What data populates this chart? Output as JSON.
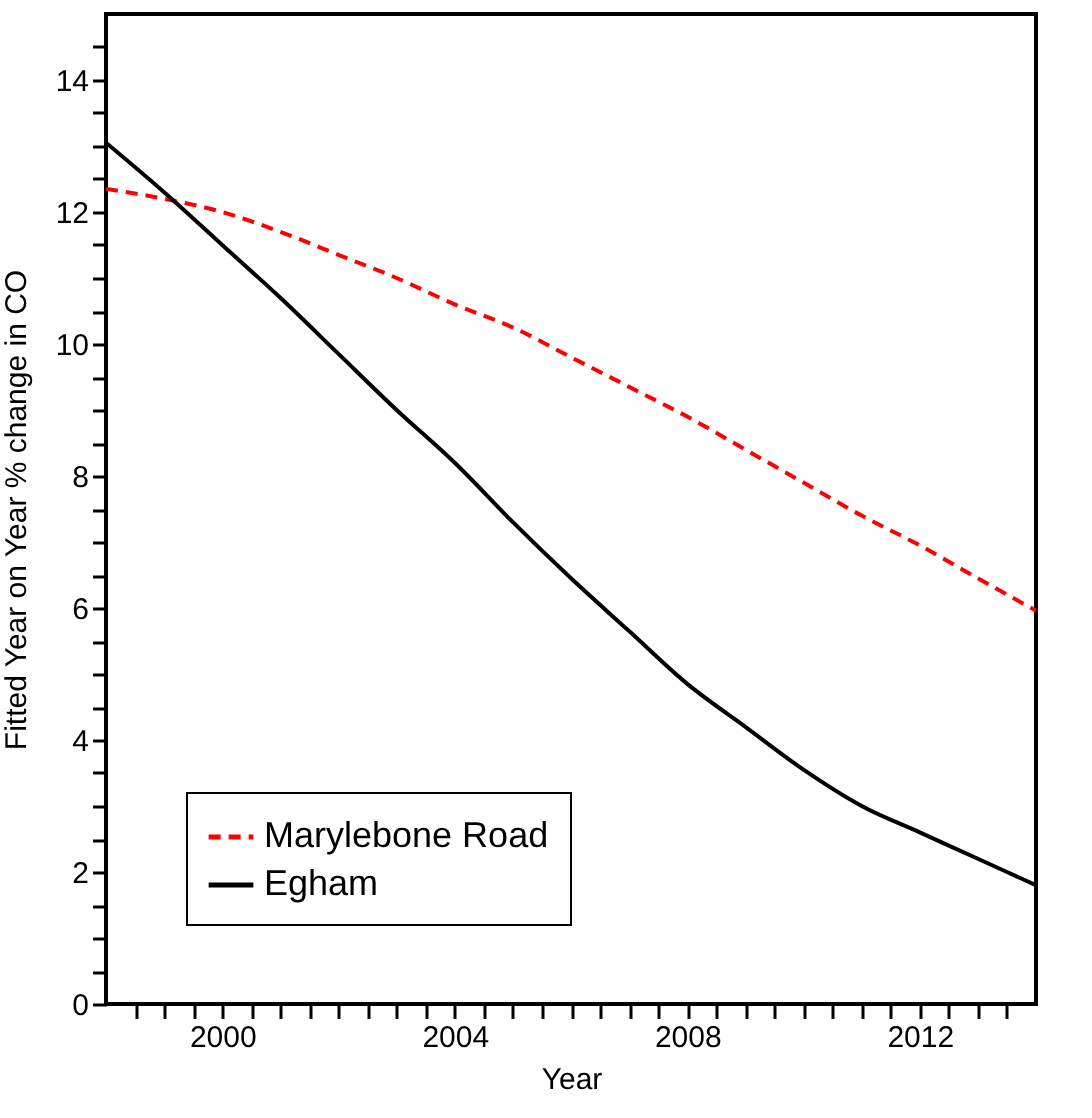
{
  "chart_data": {
    "type": "line",
    "xlabel": "Year",
    "ylabel": "Fitted Year on Year % change in CO",
    "x": [
      1998,
      1999,
      2000,
      2001,
      2002,
      2003,
      2004,
      2005,
      2006,
      2007,
      2008,
      2009,
      2010,
      2011,
      2012,
      2013,
      2014
    ],
    "series": [
      {
        "name": "Marylebone Road",
        "color": "#ff0000",
        "line_style": "dashed",
        "values": [
          12.35,
          12.2,
          12.0,
          11.7,
          11.35,
          11.0,
          10.6,
          10.25,
          9.8,
          9.35,
          8.9,
          8.4,
          7.9,
          7.4,
          6.95,
          6.45,
          5.96
        ]
      },
      {
        "name": "Egham",
        "color": "#000000",
        "line_style": "solid",
        "values": [
          13.05,
          12.3,
          11.5,
          10.7,
          9.85,
          9.0,
          8.2,
          7.3,
          6.45,
          5.65,
          4.85,
          4.2,
          3.55,
          3.0,
          2.6,
          2.2,
          1.8
        ]
      }
    ],
    "xlim": [
      1998,
      2014
    ],
    "xticks": [
      {
        "value": 1998.5,
        "label": null
      },
      {
        "value": 1999,
        "label": null
      },
      {
        "value": 1999.5,
        "label": null
      },
      2000,
      {
        "value": 2000.5,
        "label": null
      },
      {
        "value": 2001,
        "label": null
      },
      {
        "value": 2001.5,
        "label": null
      },
      {
        "value": 2002,
        "label": null
      },
      {
        "value": 2002.5,
        "label": null
      },
      {
        "value": 2003,
        "label": null
      },
      {
        "value": 2003.5,
        "label": null
      },
      2004,
      {
        "value": 2004.5,
        "label": null
      },
      {
        "value": 2005,
        "label": null
      },
      {
        "value": 2005.5,
        "label": null
      },
      {
        "value": 2006,
        "label": null
      },
      {
        "value": 2006.5,
        "label": null
      },
      {
        "value": 2007,
        "label": null
      },
      {
        "value": 2007.5,
        "label": null
      },
      2008,
      {
        "value": 2008.5,
        "label": null
      },
      {
        "value": 2009,
        "label": null
      },
      {
        "value": 2009.5,
        "label": null
      },
      {
        "value": 2010,
        "label": null
      },
      {
        "value": 2010.5,
        "label": null
      },
      {
        "value": 2011,
        "label": null
      },
      {
        "value": 2011.5,
        "label": null
      },
      2012,
      {
        "value": 2012.5,
        "label": null
      },
      {
        "value": 2013,
        "label": null
      },
      {
        "value": 2013.5,
        "label": null
      }
    ],
    "ylim": [
      0,
      15
    ],
    "yticks": [
      0,
      {
        "value": 0.5,
        "label": null
      },
      {
        "value": 1,
        "label": null
      },
      {
        "value": 1.5,
        "label": null
      },
      2,
      {
        "value": 2.5,
        "label": null
      },
      {
        "value": 3,
        "label": null
      },
      {
        "value": 3.5,
        "label": null
      },
      4,
      {
        "value": 4.5,
        "label": null
      },
      {
        "value": 5,
        "label": null
      },
      {
        "value": 5.5,
        "label": null
      },
      6,
      {
        "value": 6.5,
        "label": null
      },
      {
        "value": 7,
        "label": null
      },
      {
        "value": 7.5,
        "label": null
      },
      8,
      {
        "value": 8.5,
        "label": null
      },
      {
        "value": 9,
        "label": null
      },
      {
        "value": 9.5,
        "label": null
      },
      10,
      {
        "value": 10.5,
        "label": null
      },
      {
        "value": 11,
        "label": null
      },
      {
        "value": 11.5,
        "label": null
      },
      12,
      {
        "value": 12.5,
        "label": null
      },
      {
        "value": 13,
        "label": null
      },
      {
        "value": 13.5,
        "label": null
      },
      14,
      {
        "value": 14.5,
        "label": null
      }
    ],
    "grid": false,
    "legend": "bottom left",
    "marker": "none"
  }
}
